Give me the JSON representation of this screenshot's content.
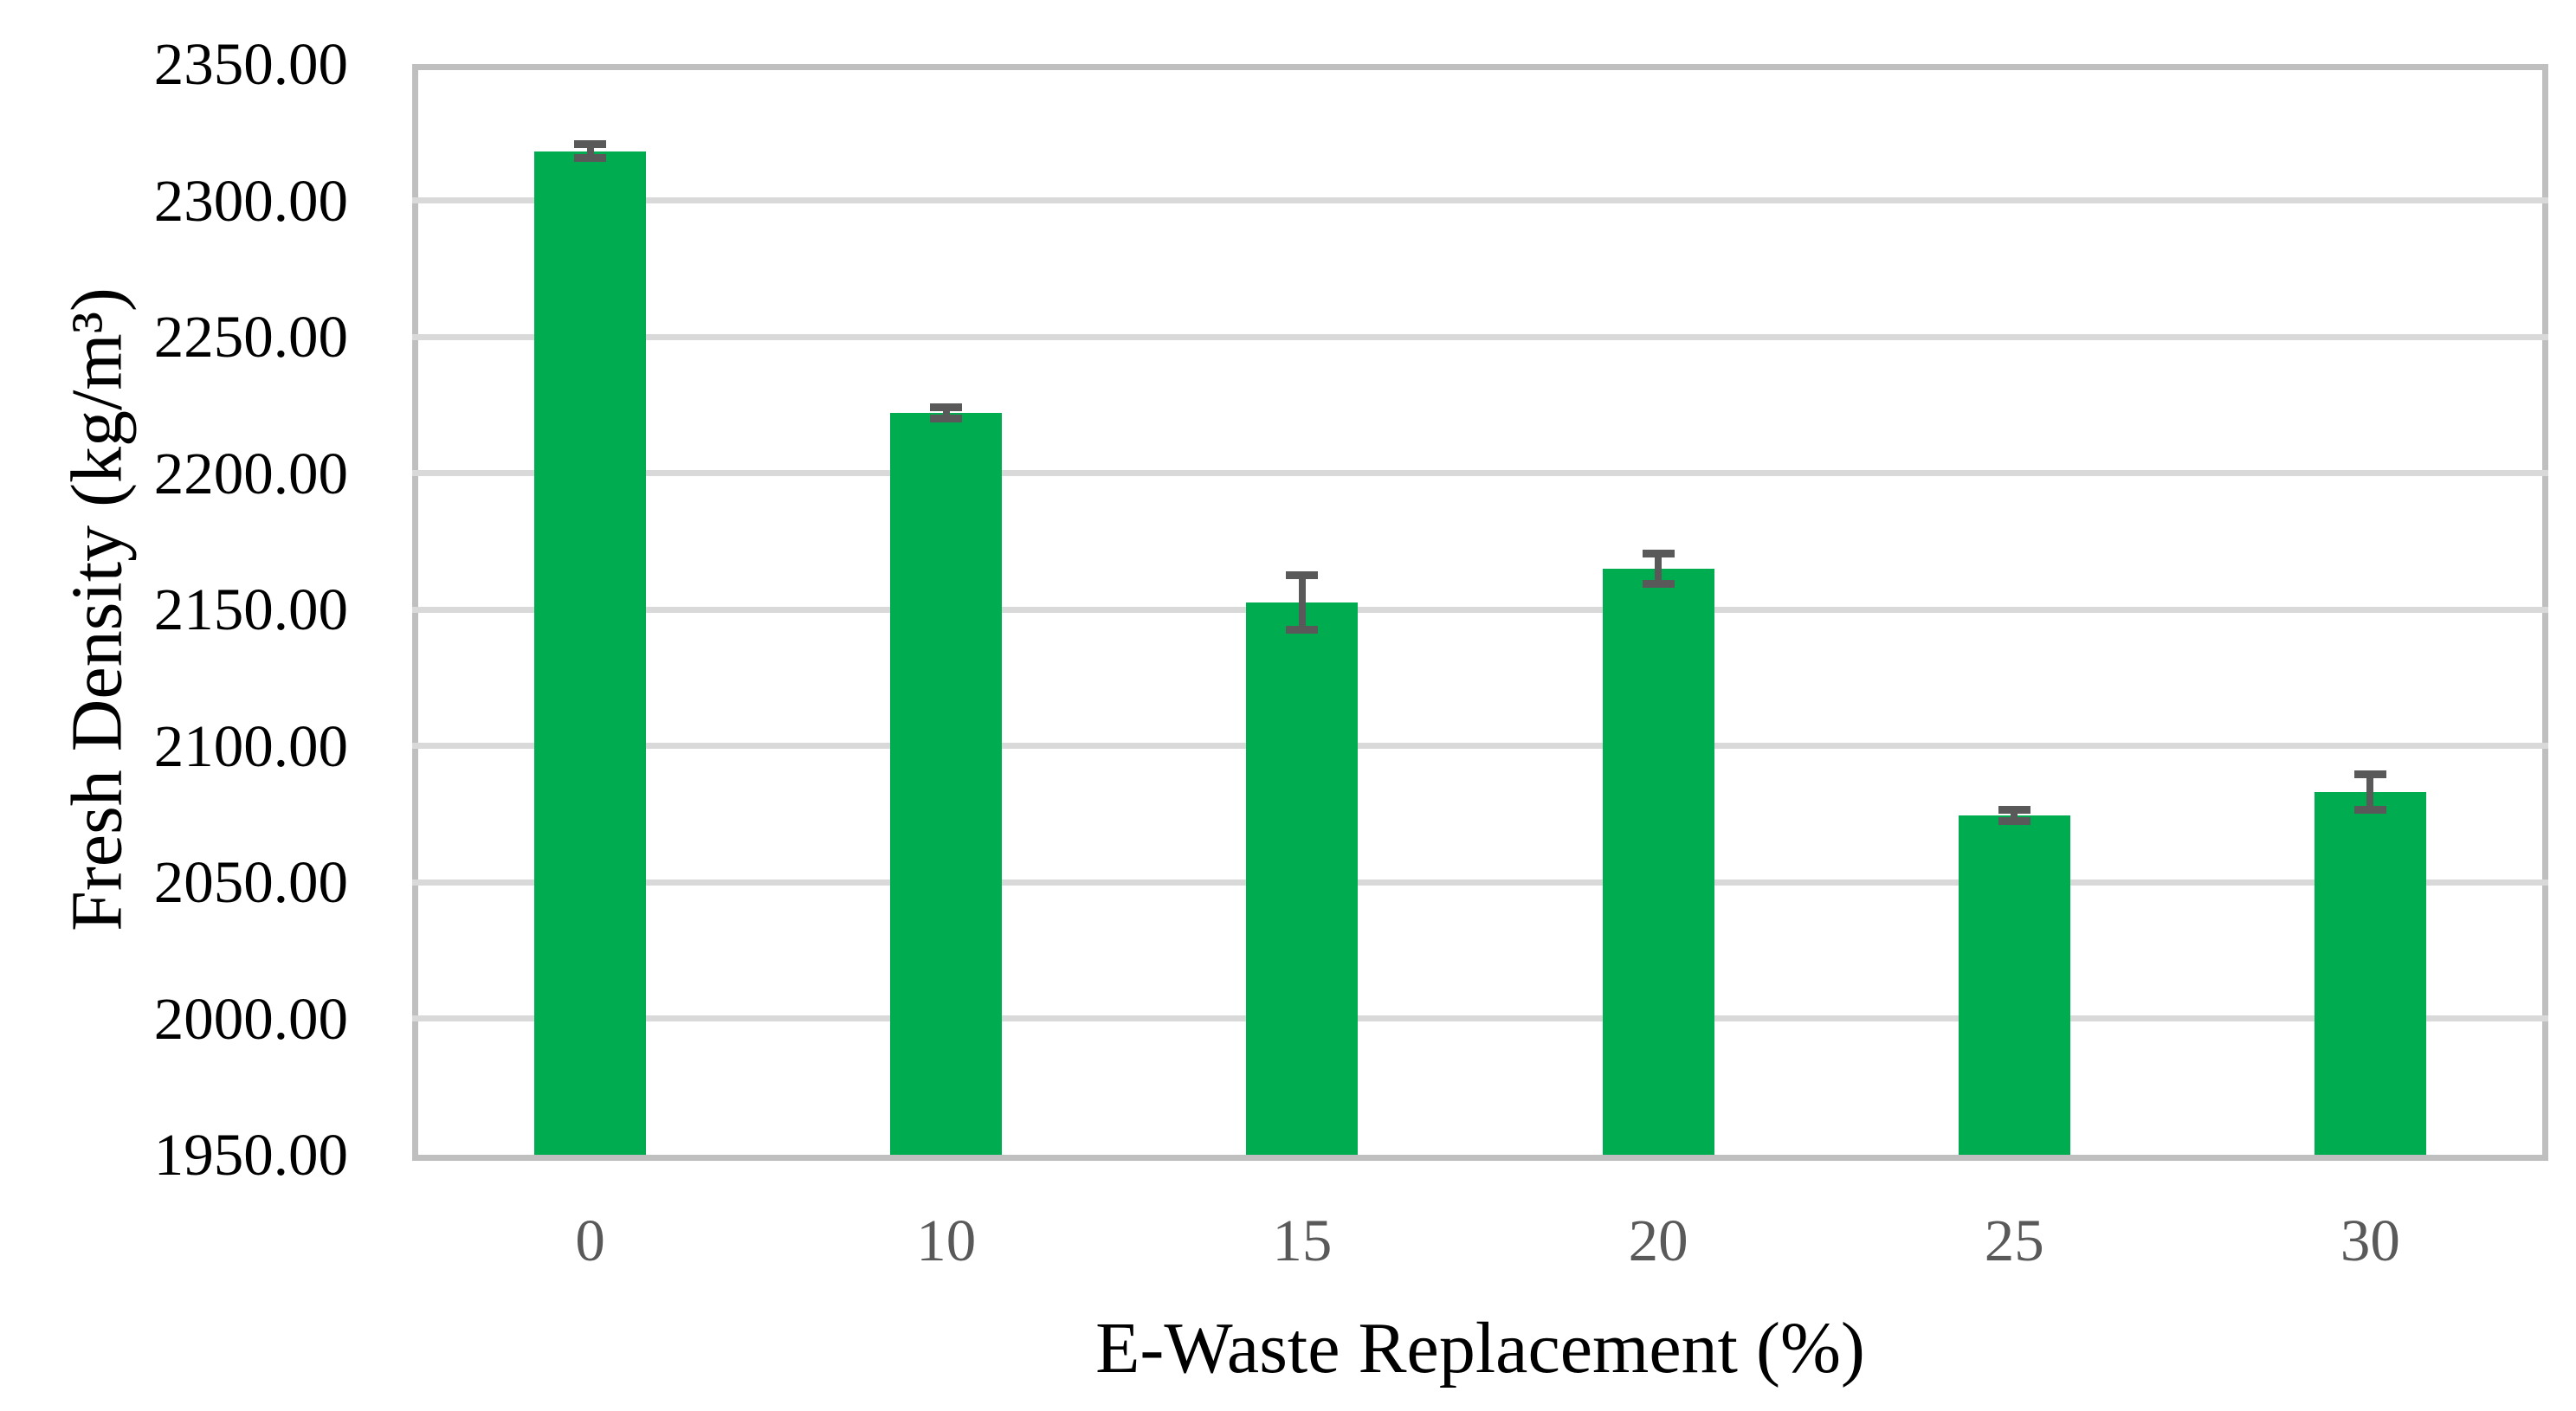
{
  "chart_data": {
    "type": "bar",
    "title": "",
    "xlabel": "E-Waste Replacement (%)",
    "ylabel": "Fresh Density (kg/m³)",
    "categories": [
      "0",
      "10",
      "15",
      "20",
      "25",
      "30"
    ],
    "series": [
      {
        "name": "Fresh Density",
        "values": [
          2318,
          2222,
          2152.5,
          2165,
          2074.5,
          2083
        ],
        "error_bars": [
          2.5,
          2,
          10,
          5.5,
          2,
          6.5
        ]
      }
    ],
    "ylim": [
      1950,
      2350
    ],
    "ytick_step": 50,
    "ytick_decimals": 2,
    "grid": "horizontal-only",
    "legend_position": "none",
    "colors": {
      "bar_fill": "#00AC50",
      "error_bar": "#595959",
      "gridline": "#d9d9d9",
      "plot_border": "#bfbfbf",
      "y_tick_text": "#000000",
      "x_tick_text": "#595959",
      "axis_title_text": "#000000",
      "background": "#ffffff"
    }
  }
}
